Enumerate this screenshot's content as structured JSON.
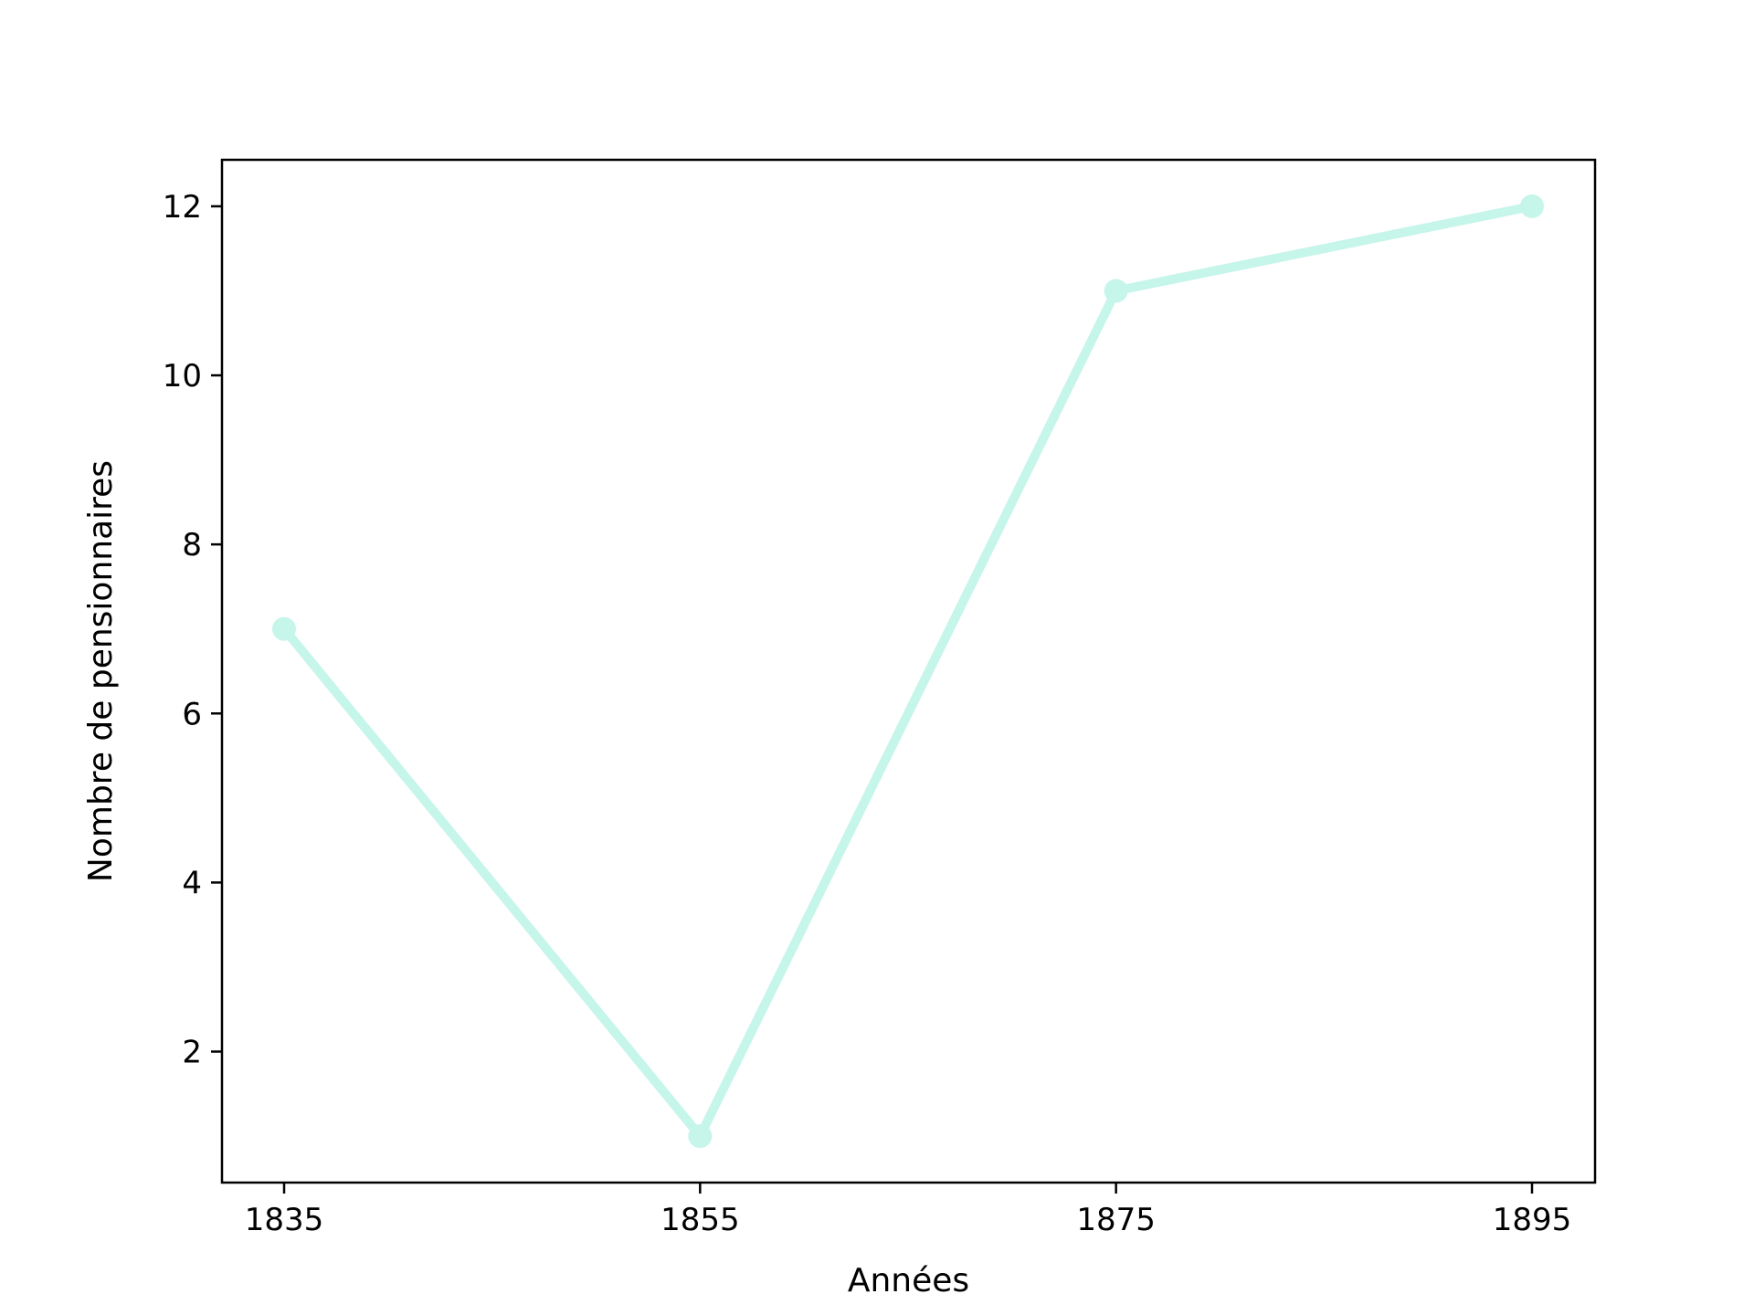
{
  "chart_data": {
    "type": "line",
    "title": "",
    "xlabel": "Années",
    "ylabel": "Nombre de pensionnaires",
    "x": [
      "1835",
      "1855",
      "1875",
      "1895"
    ],
    "series": [
      {
        "values": [
          7,
          1,
          11,
          12
        ],
        "color": "#c6f5ea"
      }
    ],
    "ylim": [
      0.45,
      12.55
    ],
    "yticks": [
      2,
      4,
      6,
      8,
      10,
      12
    ],
    "grid": false,
    "legend": "none"
  }
}
